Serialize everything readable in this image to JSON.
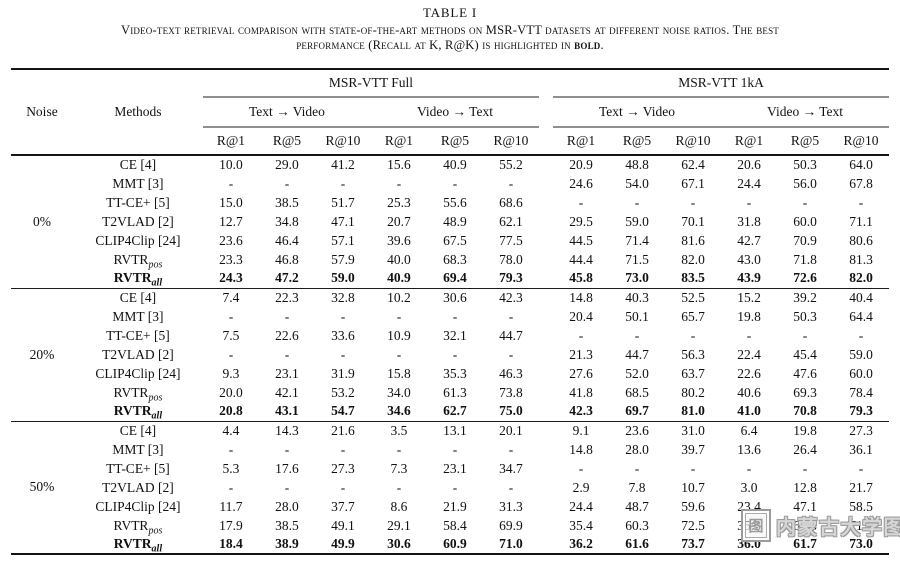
{
  "title": "TABLE I",
  "caption": {
    "line1": "Video-text retrieval comparison with state-of-the-art methods on MSR-VTT datasets at different noise ratios. The best",
    "line2_pre": "performance (Recall at K, R@K) is highlighted in ",
    "bold_word": "bold",
    "line2_post": "."
  },
  "colors": {
    "rule": "#151515",
    "cmidrule": "#8f8f8f",
    "watermark_gray": "#9b9b9b"
  },
  "table": {
    "headers": {
      "noise": "Noise",
      "methods": "Methods",
      "group_full": "MSR-VTT Full",
      "group_1ka": "MSR-VTT 1kA",
      "dir_t2v": "Text → Video",
      "dir_v2t": "Video → Text",
      "metrics": [
        "R@1",
        "R@5",
        "R@10"
      ]
    },
    "blocks": [
      {
        "noise": "0%",
        "rows": [
          {
            "method": "CE [4]",
            "values": [
              "10.0",
              "29.0",
              "41.2",
              "15.6",
              "40.9",
              "55.2",
              "20.9",
              "48.8",
              "62.4",
              "20.6",
              "50.3",
              "64.0"
            ]
          },
          {
            "method": "MMT [3]",
            "values": [
              "-",
              "-",
              "-",
              "-",
              "-",
              "-",
              "24.6",
              "54.0",
              "67.1",
              "24.4",
              "56.0",
              "67.8"
            ]
          },
          {
            "method": "TT-CE+ [5]",
            "values": [
              "15.0",
              "38.5",
              "51.7",
              "25.3",
              "55.6",
              "68.6",
              "-",
              "-",
              "-",
              "-",
              "-",
              "-"
            ]
          },
          {
            "method": "T2VLAD [2]",
            "values": [
              "12.7",
              "34.8",
              "47.1",
              "20.7",
              "48.9",
              "62.1",
              "29.5",
              "59.0",
              "70.1",
              "31.8",
              "60.0",
              "71.1"
            ]
          },
          {
            "method": "CLIP4Clip [24]",
            "values": [
              "23.6",
              "46.4",
              "57.1",
              "39.6",
              "67.5",
              "77.5",
              "44.5",
              "71.4",
              "81.6",
              "42.7",
              "70.9",
              "80.6"
            ]
          },
          {
            "method": "RVTR",
            "method_sub": "pos",
            "values": [
              "23.3",
              "46.8",
              "57.9",
              "40.0",
              "68.3",
              "78.0",
              "44.4",
              "71.5",
              "82.0",
              "43.0",
              "71.8",
              "81.3"
            ]
          },
          {
            "method": "RVTR",
            "method_sub": "all",
            "bold": true,
            "values": [
              "24.3",
              "47.2",
              "59.0",
              "40.9",
              "69.4",
              "79.3",
              "45.8",
              "73.0",
              "83.5",
              "43.9",
              "72.6",
              "82.0"
            ]
          }
        ]
      },
      {
        "noise": "20%",
        "rows": [
          {
            "method": "CE [4]",
            "values": [
              "7.4",
              "22.3",
              "32.8",
              "10.2",
              "30.6",
              "42.3",
              "14.8",
              "40.3",
              "52.5",
              "15.2",
              "39.2",
              "40.4"
            ]
          },
          {
            "method": "MMT [3]",
            "values": [
              "-",
              "-",
              "-",
              "-",
              "-",
              "-",
              "20.4",
              "50.1",
              "65.7",
              "19.8",
              "50.3",
              "64.4"
            ]
          },
          {
            "method": "TT-CE+ [5]",
            "values": [
              "7.5",
              "22.6",
              "33.6",
              "10.9",
              "32.1",
              "44.7",
              "-",
              "-",
              "-",
              "-",
              "-",
              "-"
            ]
          },
          {
            "method": "T2VLAD [2]",
            "values": [
              "-",
              "-",
              "-",
              "-",
              "-",
              "-",
              "21.3",
              "44.7",
              "56.3",
              "22.4",
              "45.4",
              "59.0"
            ]
          },
          {
            "method": "CLIP4Clip [24]",
            "values": [
              "9.3",
              "23.1",
              "31.9",
              "15.8",
              "35.3",
              "46.3",
              "27.6",
              "52.0",
              "63.7",
              "22.6",
              "47.6",
              "60.0"
            ]
          },
          {
            "method": "RVTR",
            "method_sub": "pos",
            "values": [
              "20.0",
              "42.1",
              "53.2",
              "34.0",
              "61.3",
              "73.8",
              "41.8",
              "68.5",
              "80.2",
              "40.6",
              "69.3",
              "78.4"
            ]
          },
          {
            "method": "RVTR",
            "method_sub": "all",
            "bold": true,
            "values": [
              "20.8",
              "43.1",
              "54.7",
              "34.6",
              "62.7",
              "75.0",
              "42.3",
              "69.7",
              "81.0",
              "41.0",
              "70.8",
              "79.3"
            ]
          }
        ]
      },
      {
        "noise": "50%",
        "rows": [
          {
            "method": "CE [4]",
            "values": [
              "4.4",
              "14.3",
              "21.6",
              "3.5",
              "13.1",
              "20.1",
              "9.1",
              "23.6",
              "31.0",
              "6.4",
              "19.8",
              "27.3"
            ]
          },
          {
            "method": "MMT [3]",
            "values": [
              "-",
              "-",
              "-",
              "-",
              "-",
              "-",
              "14.8",
              "28.0",
              "39.7",
              "13.6",
              "26.4",
              "36.1"
            ]
          },
          {
            "method": "TT-CE+ [5]",
            "values": [
              "5.3",
              "17.6",
              "27.3",
              "7.3",
              "23.1",
              "34.7",
              "-",
              "-",
              "-",
              "-",
              "-",
              "-"
            ]
          },
          {
            "method": "T2VLAD [2]",
            "values": [
              "-",
              "-",
              "-",
              "-",
              "-",
              "-",
              "2.9",
              "7.8",
              "10.7",
              "3.0",
              "12.8",
              "21.7"
            ]
          },
          {
            "method": "CLIP4Clip [24]",
            "values": [
              "11.7",
              "28.0",
              "37.7",
              "8.6",
              "21.9",
              "31.3",
              "24.4",
              "48.7",
              "59.6",
              "23.4",
              "47.1",
              "58.5"
            ]
          },
          {
            "method": "RVTR",
            "method_sub": "pos",
            "values": [
              "17.9",
              "38.5",
              "49.1",
              "29.1",
              "58.4",
              "69.9",
              "35.4",
              "60.3",
              "72.5",
              "35.3",
              "60.8",
              "71.9"
            ]
          },
          {
            "method": "RVTR",
            "method_sub": "all",
            "bold": true,
            "values": [
              "18.4",
              "38.9",
              "49.9",
              "30.6",
              "60.9",
              "71.0",
              "36.2",
              "61.6",
              "73.7",
              "36.0",
              "61.7",
              "73.0"
            ]
          }
        ]
      }
    ]
  },
  "watermark": {
    "seal_char": "图",
    "text": "内蒙古大学图书馆"
  }
}
